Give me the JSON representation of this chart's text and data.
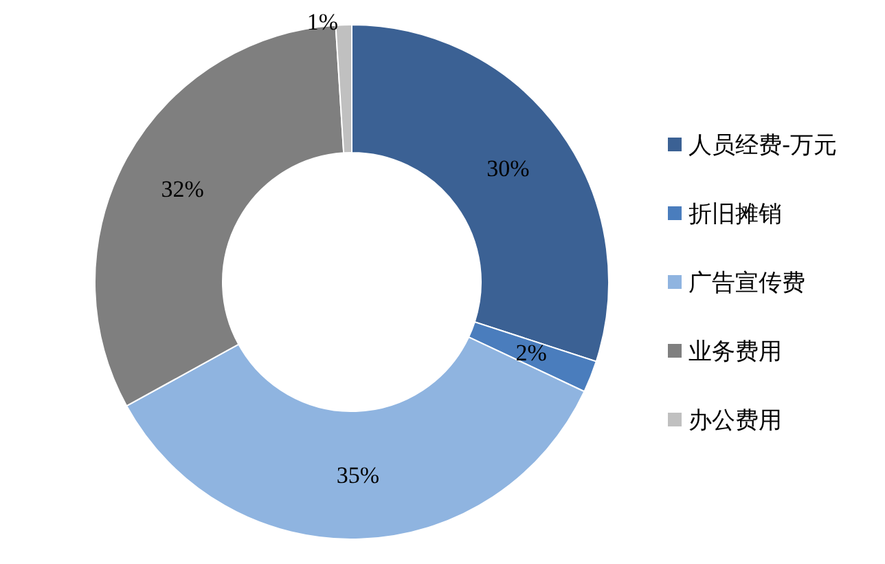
{
  "chart_data": {
    "type": "donut",
    "categories": [
      "人员经费-万元",
      "折旧摊销",
      "广告宣传费",
      "业务费用",
      "办公费用"
    ],
    "values": [
      30,
      2,
      35,
      32,
      1
    ],
    "colors": [
      "#3b6194",
      "#4a7dbd",
      "#8fb4e0",
      "#7f7f7f",
      "#c0c0c0"
    ],
    "value_labels": [
      "30%",
      "2%",
      "35%",
      "32%",
      "1%"
    ],
    "legend": "right"
  }
}
